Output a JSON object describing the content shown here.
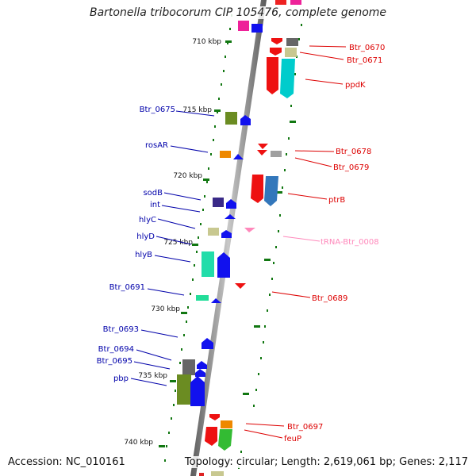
{
  "title": "Bartonella tribocorum CIP 105476, complete genome",
  "footer": {
    "accession": "Accession: NC_010161",
    "topology": "Topology: circular; Length: 2,619,061 bp; Genes: 2,117"
  },
  "colors": {
    "left_label": "#0000aa",
    "right_label": "#dd0000",
    "trna_label": "#ff88bb",
    "tick": "#117711",
    "backbone": "#8c8c8c"
  },
  "ticks": [
    "710 kbp",
    "715 kbp",
    "720 kbp",
    "725 kbp",
    "730 kbp",
    "735 kbp",
    "740 kbp"
  ],
  "left_labels": [
    "Btr_0675",
    "rosAR",
    "sodB",
    "int",
    "hlyC",
    "hlyD",
    "hlyB",
    "Btr_0691",
    "Btr_0693",
    "Btr_0694",
    "Btr_0695",
    "pbp"
  ],
  "right_labels": [
    "Btr_0670",
    "Btr_0671",
    "ppdK",
    "Btr_0678",
    "Btr_0679",
    "ptrB",
    "tRNA-Btr_0008",
    "Btr_0689",
    "Btr_0697",
    "feuP"
  ]
}
